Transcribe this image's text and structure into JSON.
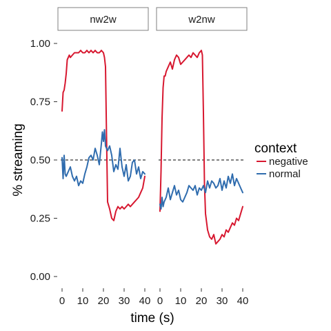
{
  "chart_data": {
    "type": "line",
    "facet_labels": [
      "nw2w",
      "w2nw"
    ],
    "xlabel": "time (s)",
    "ylabel": "% streaming",
    "xlim": [
      0,
      40
    ],
    "ylim": [
      0,
      1
    ],
    "x_ticks": [
      "0",
      "10",
      "20",
      "30",
      "40"
    ],
    "y_ticks": [
      "0.00",
      "0.25",
      "0.50",
      "0.75",
      "1.00"
    ],
    "y_tick_values": [
      0,
      0.25,
      0.5,
      0.75,
      1.0
    ],
    "x_tick_values": [
      0,
      10,
      20,
      30,
      40
    ],
    "reference_line": 0.5,
    "legend": {
      "title": "context",
      "placement": "right"
    },
    "series_colors": {
      "negative": "#d7172f",
      "normal": "#2f6cae"
    },
    "grid": false,
    "facets": [
      {
        "label": "nw2w",
        "series": [
          {
            "name": "negative",
            "x": [
              0,
              0.5,
              1,
              1.5,
              2,
              2.5,
              3,
              3.5,
              4,
              5,
              6,
              7,
              8,
              9,
              10,
              11,
              12,
              13,
              14,
              15,
              16,
              17,
              18,
              19,
              20,
              20.5,
              21,
              21.5,
              22,
              23,
              24,
              25,
              26,
              27,
              28,
              29,
              30,
              31,
              32,
              33,
              34,
              35,
              36,
              37,
              38,
              39,
              40
            ],
            "y": [
              0.71,
              0.79,
              0.8,
              0.83,
              0.87,
              0.93,
              0.94,
              0.95,
              0.94,
              0.95,
              0.96,
              0.96,
              0.96,
              0.97,
              0.96,
              0.96,
              0.97,
              0.96,
              0.97,
              0.96,
              0.97,
              0.96,
              0.96,
              0.97,
              0.96,
              0.94,
              0.9,
              0.6,
              0.32,
              0.29,
              0.25,
              0.24,
              0.28,
              0.3,
              0.29,
              0.3,
              0.29,
              0.3,
              0.31,
              0.3,
              0.31,
              0.32,
              0.33,
              0.34,
              0.36,
              0.38,
              0.43
            ]
          },
          {
            "name": "normal",
            "x": [
              0,
              0.5,
              1,
              1.5,
              2,
              3,
              4,
              5,
              6,
              7,
              8,
              9,
              10,
              11,
              12,
              13,
              14,
              15,
              16,
              17,
              18,
              19,
              19.5,
              20,
              20.5,
              21,
              22,
              23,
              24,
              25,
              26,
              27,
              28,
              29,
              30,
              31,
              32,
              33,
              34,
              35,
              36,
              37,
              38,
              39,
              40
            ],
            "y": [
              0.51,
              0.42,
              0.52,
              0.44,
              0.43,
              0.45,
              0.47,
              0.43,
              0.41,
              0.43,
              0.39,
              0.41,
              0.4,
              0.44,
              0.47,
              0.51,
              0.52,
              0.5,
              0.55,
              0.52,
              0.48,
              0.57,
              0.62,
              0.58,
              0.63,
              0.56,
              0.54,
              0.56,
              0.52,
              0.45,
              0.48,
              0.46,
              0.55,
              0.47,
              0.43,
              0.48,
              0.41,
              0.43,
              0.49,
              0.5,
              0.44,
              0.47,
              0.42,
              0.45,
              0.44
            ]
          }
        ]
      },
      {
        "label": "w2nw",
        "series": [
          {
            "name": "negative",
            "x": [
              0,
              0.5,
              1,
              1.5,
              2,
              2.5,
              3,
              4,
              5,
              6,
              7,
              8,
              9,
              10,
              11,
              12,
              13,
              14,
              15,
              16,
              17,
              18,
              19,
              20,
              20.5,
              21,
              21.5,
              22,
              23,
              24,
              25,
              26,
              27,
              28,
              29,
              30,
              31,
              32,
              33,
              34,
              35,
              36,
              37,
              38,
              39,
              40
            ],
            "y": [
              0.28,
              0.45,
              0.68,
              0.81,
              0.86,
              0.86,
              0.88,
              0.9,
              0.92,
              0.89,
              0.93,
              0.95,
              0.94,
              0.91,
              0.92,
              0.93,
              0.94,
              0.95,
              0.94,
              0.96,
              0.95,
              0.94,
              0.96,
              0.97,
              0.95,
              0.7,
              0.4,
              0.27,
              0.2,
              0.17,
              0.16,
              0.18,
              0.14,
              0.15,
              0.16,
              0.18,
              0.17,
              0.2,
              0.19,
              0.21,
              0.23,
              0.22,
              0.25,
              0.24,
              0.27,
              0.3
            ]
          },
          {
            "name": "normal",
            "x": [
              0,
              0.5,
              1,
              1.5,
              2,
              3,
              4,
              5,
              6,
              7,
              8,
              9,
              10,
              11,
              12,
              13,
              14,
              15,
              16,
              17,
              18,
              19,
              20,
              21,
              22,
              23,
              24,
              25,
              26,
              27,
              28,
              29,
              30,
              31,
              32,
              33,
              34,
              35,
              36,
              37,
              38,
              39,
              40
            ],
            "y": [
              0.31,
              0.29,
              0.34,
              0.3,
              0.32,
              0.34,
              0.38,
              0.33,
              0.36,
              0.39,
              0.35,
              0.37,
              0.33,
              0.32,
              0.34,
              0.36,
              0.39,
              0.38,
              0.37,
              0.39,
              0.35,
              0.38,
              0.37,
              0.39,
              0.36,
              0.41,
              0.38,
              0.41,
              0.4,
              0.38,
              0.39,
              0.42,
              0.37,
              0.41,
              0.38,
              0.43,
              0.4,
              0.44,
              0.39,
              0.42,
              0.4,
              0.38,
              0.36
            ]
          }
        ]
      }
    ]
  }
}
